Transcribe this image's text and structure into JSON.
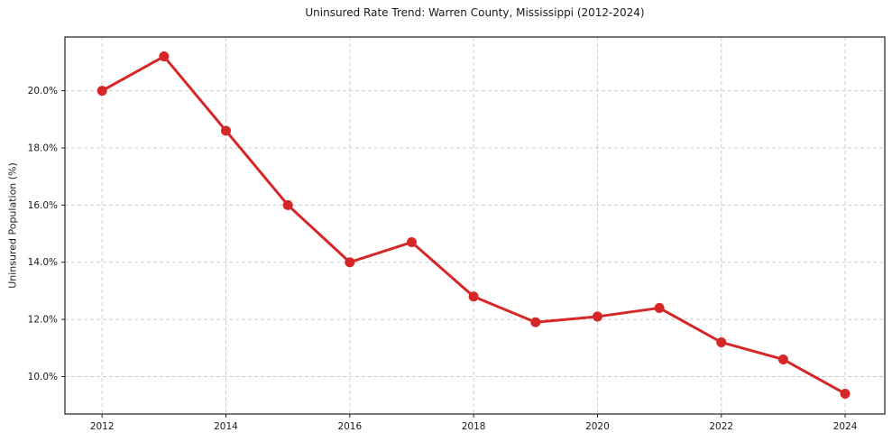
{
  "chart_data": {
    "type": "line",
    "title": "Uninsured Rate Trend: Warren County, Mississippi (2012-2024)",
    "xlabel": "",
    "ylabel": "Uninsured Population (%)",
    "x": [
      2012,
      2013,
      2014,
      2015,
      2016,
      2017,
      2018,
      2019,
      2020,
      2021,
      2022,
      2023,
      2024
    ],
    "values": [
      20.0,
      21.2,
      18.6,
      16.0,
      14.0,
      14.7,
      12.8,
      11.9,
      12.1,
      12.4,
      11.2,
      10.6,
      9.4
    ],
    "xlim": [
      2011.4,
      2024.64
    ],
    "ylim": [
      8.69,
      21.88
    ],
    "xticks": [
      2012,
      2014,
      2016,
      2018,
      2020,
      2022,
      2024
    ],
    "xtick_labels": [
      "2012",
      "2014",
      "2016",
      "2018",
      "2020",
      "2022",
      "2024"
    ],
    "yticks": [
      10.0,
      12.0,
      14.0,
      16.0,
      18.0,
      20.0
    ],
    "ytick_labels": [
      "10.0%",
      "12.0%",
      "14.0%",
      "16.0%",
      "18.0%",
      "20.0%"
    ],
    "grid": true,
    "grid_style": "dashed",
    "legend": "none",
    "marker": "circle",
    "marker_size": 11,
    "line_width": 3,
    "line_color": "#d62728",
    "grid_color": "#cccccc",
    "spine_color": "#1f1f1f",
    "text_color": "#1a1a1a",
    "background_color": "#ffffff"
  }
}
